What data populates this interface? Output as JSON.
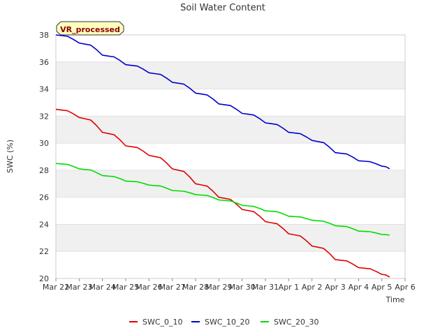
{
  "chart_data": {
    "type": "line",
    "title": "Soil Water Content",
    "xlabel": "Time",
    "ylabel": "SWC (%)",
    "badge": "VR_processed",
    "xlim": [
      "2024-03-22",
      "2024-04-06"
    ],
    "ylim": [
      20,
      38
    ],
    "x_ticks": [
      "Mar 22",
      "Mar 23",
      "Mar 24",
      "Mar 25",
      "Mar 26",
      "Mar 27",
      "Mar 28",
      "Mar 29",
      "Mar 30",
      "Mar 31",
      "Apr 1",
      "Apr 2",
      "Apr 3",
      "Apr 4",
      "Apr 5",
      "Apr 6"
    ],
    "y_ticks": [
      "20",
      "22",
      "24",
      "26",
      "28",
      "30",
      "32",
      "34",
      "36",
      "38"
    ],
    "grid": true,
    "banded_background": true,
    "legend_position": "bottom-center",
    "x": [
      "2024-03-22",
      "2024-03-23",
      "2024-03-24",
      "2024-03-25",
      "2024-03-26",
      "2024-03-27",
      "2024-03-28",
      "2024-03-29",
      "2024-03-30",
      "2024-03-31",
      "2024-04-01",
      "2024-04-02",
      "2024-04-03",
      "2024-04-04",
      "2024-04-05"
    ],
    "x_end": "2024-04-05T08:00",
    "series": [
      {
        "name": "SWC_0_10",
        "color": "#dd0000",
        "values": [
          32.5,
          31.9,
          30.8,
          29.8,
          29.1,
          28.1,
          27.0,
          26.0,
          25.1,
          24.2,
          23.3,
          22.4,
          21.4,
          20.8,
          20.3
        ],
        "end_value": 20.1
      },
      {
        "name": "SWC_10_20",
        "color": "#0000cc",
        "values": [
          38.0,
          37.4,
          36.5,
          35.8,
          35.2,
          34.5,
          33.7,
          32.9,
          32.2,
          31.5,
          30.8,
          30.2,
          29.3,
          28.7,
          28.3
        ],
        "end_value": 28.1
      },
      {
        "name": "SWC_20_30",
        "color": "#00dd00",
        "values": [
          28.5,
          28.1,
          27.6,
          27.2,
          26.9,
          26.5,
          26.2,
          25.8,
          25.4,
          25.0,
          24.6,
          24.3,
          23.9,
          23.5,
          23.25
        ],
        "end_value": 23.2
      }
    ]
  }
}
